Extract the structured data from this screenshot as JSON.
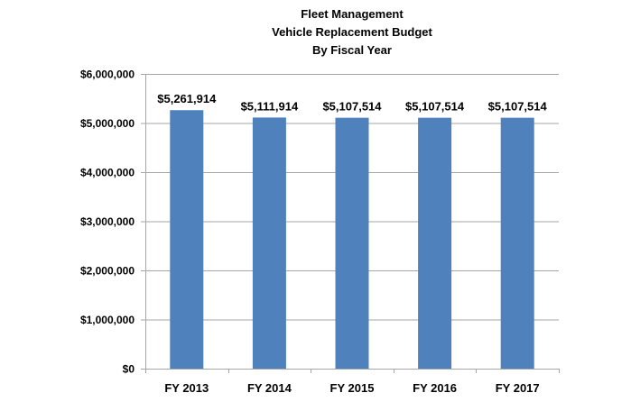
{
  "chart_data": {
    "type": "bar",
    "title_lines": [
      "Fleet Management",
      "Vehicle Replacement Budget",
      "By Fiscal Year"
    ],
    "categories": [
      "FY 2013",
      "FY 2014",
      "FY 2015",
      "FY 2016",
      "FY 2017"
    ],
    "values": [
      5261914,
      5111914,
      5107514,
      5107514,
      5107514
    ],
    "data_labels": [
      "$5,261,914",
      "$5,111,914",
      "$5,107,514",
      "$5,107,514",
      "$5,107,514"
    ],
    "ylim": [
      0,
      6000000
    ],
    "y_ticks": [
      0,
      1000000,
      2000000,
      3000000,
      4000000,
      5000000,
      6000000
    ],
    "y_tick_labels": [
      "$0",
      "$1,000,000",
      "$2,000,000",
      "$3,000,000",
      "$4,000,000",
      "$5,000,000",
      "$6,000,000"
    ],
    "xlabel": "",
    "ylabel": "",
    "grid": true,
    "legend": "none",
    "bar_color": "#4f81bd",
    "grid_color": "#a6a6a6"
  }
}
